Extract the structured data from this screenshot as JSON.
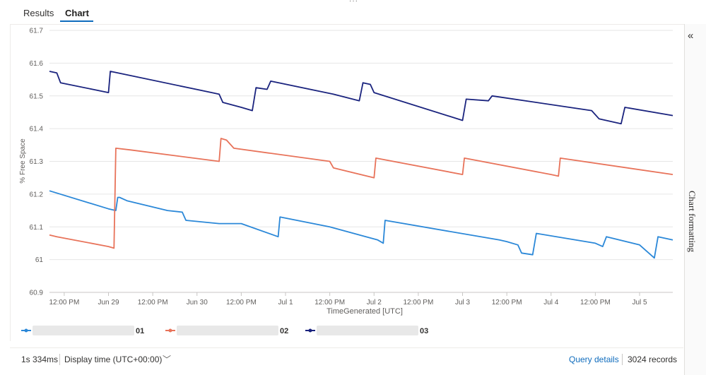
{
  "tabs": [
    {
      "label": "Results",
      "active": false
    },
    {
      "label": "Chart",
      "active": true
    }
  ],
  "side_panel": {
    "label": "Chart formatting",
    "collapse_icon": "double-chevron-left-icon"
  },
  "status": {
    "duration": "1s 334ms",
    "display_time": "Display time (UTC+00:00)",
    "query_details": "Query details",
    "records": "3024 records"
  },
  "chart_data": {
    "type": "line",
    "xlabel": "TimeGenerated [UTC]",
    "ylabel": "% Free Space",
    "ylim": [
      60.9,
      61.7
    ],
    "yticks": [
      "60.9",
      "61",
      "61.1",
      "61.2",
      "61.3",
      "61.4",
      "61.5",
      "61.6",
      "61.7"
    ],
    "xlim": [
      "2024-06-28T08:00",
      "2024-07-05T09:00"
    ],
    "xticks": [
      {
        "label": "12:00 PM",
        "at": "2024-06-28T12:00"
      },
      {
        "label": "Jun 29",
        "at": "2024-06-29T00:00"
      },
      {
        "label": "12:00 PM",
        "at": "2024-06-29T12:00"
      },
      {
        "label": "Jun 30",
        "at": "2024-06-30T00:00"
      },
      {
        "label": "12:00 PM",
        "at": "2024-06-30T12:00"
      },
      {
        "label": "Jul 1",
        "at": "2024-07-01T00:00"
      },
      {
        "label": "12:00 PM",
        "at": "2024-07-01T12:00"
      },
      {
        "label": "Jul 2",
        "at": "2024-07-02T00:00"
      },
      {
        "label": "12:00 PM",
        "at": "2024-07-02T12:00"
      },
      {
        "label": "Jul 3",
        "at": "2024-07-03T00:00"
      },
      {
        "label": "12:00 PM",
        "at": "2024-07-03T12:00"
      },
      {
        "label": "Jul 4",
        "at": "2024-07-04T00:00"
      },
      {
        "label": "12:00 PM",
        "at": "2024-07-04T12:00"
      },
      {
        "label": "Jul 5",
        "at": "2024-07-05T00:00"
      }
    ],
    "grid": true,
    "legend": "bottom-left",
    "series": [
      {
        "name": "01",
        "color": "#2b88d8",
        "points": [
          [
            "2024-06-28T08:00",
            61.21
          ],
          [
            "2024-06-29T00:00",
            61.155
          ],
          [
            "2024-06-29T02:00",
            61.15
          ],
          [
            "2024-06-29T02:30",
            61.19
          ],
          [
            "2024-06-29T03:00",
            61.19
          ],
          [
            "2024-06-29T05:00",
            61.18
          ],
          [
            "2024-06-29T16:00",
            61.15
          ],
          [
            "2024-06-29T20:00",
            61.145
          ],
          [
            "2024-06-29T21:00",
            61.12
          ],
          [
            "2024-06-30T06:00",
            61.11
          ],
          [
            "2024-06-30T12:00",
            61.11
          ],
          [
            "2024-06-30T22:00",
            61.07
          ],
          [
            "2024-06-30T22:30",
            61.13
          ],
          [
            "2024-07-01T12:00",
            61.1
          ],
          [
            "2024-07-02T01:00",
            61.06
          ],
          [
            "2024-07-02T02:30",
            61.05
          ],
          [
            "2024-07-02T03:00",
            61.12
          ],
          [
            "2024-07-03T10:00",
            61.06
          ],
          [
            "2024-07-03T12:00",
            61.055
          ],
          [
            "2024-07-03T15:00",
            61.045
          ],
          [
            "2024-07-03T16:00",
            61.02
          ],
          [
            "2024-07-03T19:00",
            61.015
          ],
          [
            "2024-07-03T20:00",
            61.08
          ],
          [
            "2024-07-04T12:00",
            61.05
          ],
          [
            "2024-07-04T14:00",
            61.04
          ],
          [
            "2024-07-04T15:00",
            61.07
          ],
          [
            "2024-07-05T00:00",
            61.045
          ],
          [
            "2024-07-05T04:00",
            61.005
          ],
          [
            "2024-07-05T05:00",
            61.07
          ],
          [
            "2024-07-05T09:00",
            61.06
          ]
        ]
      },
      {
        "name": "02",
        "color": "#e8735a",
        "points": [
          [
            "2024-06-28T08:00",
            61.075
          ],
          [
            "2024-06-28T10:00",
            61.07
          ],
          [
            "2024-06-29T00:00",
            61.04
          ],
          [
            "2024-06-29T01:30",
            61.035
          ],
          [
            "2024-06-29T02:00",
            61.34
          ],
          [
            "2024-06-29T06:00",
            61.335
          ],
          [
            "2024-06-30T06:00",
            61.3
          ],
          [
            "2024-06-30T06:30",
            61.37
          ],
          [
            "2024-06-30T08:00",
            61.365
          ],
          [
            "2024-06-30T10:00",
            61.34
          ],
          [
            "2024-07-01T12:00",
            61.3
          ],
          [
            "2024-07-01T13:00",
            61.28
          ],
          [
            "2024-07-02T00:00",
            61.25
          ],
          [
            "2024-07-02T00:30",
            61.31
          ],
          [
            "2024-07-03T00:00",
            61.26
          ],
          [
            "2024-07-03T00:30",
            61.31
          ],
          [
            "2024-07-04T00:00",
            61.26
          ],
          [
            "2024-07-04T02:00",
            61.255
          ],
          [
            "2024-07-04T02:30",
            61.31
          ],
          [
            "2024-07-05T09:00",
            61.26
          ]
        ]
      },
      {
        "name": "03",
        "color": "#1a237e",
        "points": [
          [
            "2024-06-28T08:00",
            61.575
          ],
          [
            "2024-06-28T10:00",
            61.57
          ],
          [
            "2024-06-28T11:00",
            61.54
          ],
          [
            "2024-06-29T00:00",
            61.51
          ],
          [
            "2024-06-29T00:30",
            61.575
          ],
          [
            "2024-06-30T04:00",
            61.51
          ],
          [
            "2024-06-30T06:00",
            61.505
          ],
          [
            "2024-06-30T07:00",
            61.48
          ],
          [
            "2024-06-30T12:00",
            61.465
          ],
          [
            "2024-06-30T15:00",
            61.455
          ],
          [
            "2024-06-30T16:00",
            61.525
          ],
          [
            "2024-06-30T19:00",
            61.52
          ],
          [
            "2024-06-30T20:00",
            61.545
          ],
          [
            "2024-07-01T13:00",
            61.505
          ],
          [
            "2024-07-01T20:00",
            61.485
          ],
          [
            "2024-07-01T21:00",
            61.54
          ],
          [
            "2024-07-01T23:00",
            61.535
          ],
          [
            "2024-07-02T00:00",
            61.51
          ],
          [
            "2024-07-03T00:00",
            61.425
          ],
          [
            "2024-07-03T01:00",
            61.49
          ],
          [
            "2024-07-03T07:00",
            61.485
          ],
          [
            "2024-07-03T08:00",
            61.5
          ],
          [
            "2024-07-04T11:00",
            61.455
          ],
          [
            "2024-07-04T13:00",
            61.43
          ],
          [
            "2024-07-04T19:00",
            61.415
          ],
          [
            "2024-07-04T20:00",
            61.465
          ],
          [
            "2024-07-05T09:00",
            61.44
          ]
        ]
      }
    ]
  }
}
